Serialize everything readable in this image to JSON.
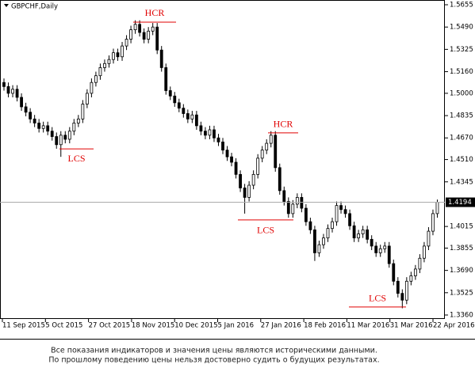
{
  "chart_data": {
    "type": "candlestick",
    "title": "GBPCHF,Daily",
    "ylim": [
      1.336,
      1.5655
    ],
    "yticks": [
      1.5655,
      {
        "value": 1.549,
        "label": "1.5490"
      },
      1.5325,
      {
        "value": 1.516,
        "label": "1.5160"
      },
      {
        "value": 1.5,
        "label": "1.5000"
      },
      1.4835,
      {
        "value": 1.467,
        "label": "1.4670"
      },
      {
        "value": 1.451,
        "label": "1.4510"
      },
      1.4345,
      1.4015,
      1.3855,
      {
        "value": 1.369,
        "label": "1.3690"
      },
      1.3525,
      {
        "value": 1.336,
        "label": "1.3360"
      }
    ],
    "xticks": [
      "11 Sep 2015",
      "5 Oct 2015",
      "27 Oct 2015",
      "18 Nov 2015",
      "10 Dec 2015",
      "5 Jan 2016",
      "27 Jan 2016",
      "18 Feb 2016",
      "11 Mar 2016",
      "31 Mar 2016",
      "22 Apr 2016"
    ],
    "current_price": 1.4194,
    "ohlc": [
      [
        1.508,
        1.511,
        1.502,
        1.505
      ],
      [
        1.505,
        1.508,
        1.497,
        1.5
      ],
      [
        1.5,
        1.506,
        1.497,
        1.503
      ],
      [
        1.503,
        1.506,
        1.494,
        1.497
      ],
      [
        1.497,
        1.5,
        1.487,
        1.49
      ],
      [
        1.49,
        1.493,
        1.483,
        1.486
      ],
      [
        1.486,
        1.489,
        1.478,
        1.481
      ],
      [
        1.481,
        1.484,
        1.475,
        1.478
      ],
      [
        1.478,
        1.481,
        1.471,
        1.474
      ],
      [
        1.474,
        1.479,
        1.471,
        1.476
      ],
      [
        1.476,
        1.479,
        1.469,
        1.472
      ],
      [
        1.472,
        1.475,
        1.465,
        1.468
      ],
      [
        1.468,
        1.471,
        1.459,
        1.462
      ],
      [
        1.462,
        1.472,
        1.453,
        1.469
      ],
      [
        1.469,
        1.472,
        1.463,
        1.466
      ],
      [
        1.466,
        1.475,
        1.463,
        1.472
      ],
      [
        1.472,
        1.481,
        1.469,
        1.478
      ],
      [
        1.478,
        1.484,
        1.475,
        1.481
      ],
      [
        1.481,
        1.495,
        1.478,
        1.492
      ],
      [
        1.492,
        1.503,
        1.489,
        1.5
      ],
      [
        1.5,
        1.511,
        1.497,
        1.508
      ],
      [
        1.508,
        1.516,
        1.505,
        1.513
      ],
      [
        1.513,
        1.522,
        1.51,
        1.519
      ],
      [
        1.519,
        1.525,
        1.516,
        1.522
      ],
      [
        1.522,
        1.528,
        1.519,
        1.525
      ],
      [
        1.525,
        1.533,
        1.522,
        1.53
      ],
      [
        1.53,
        1.533,
        1.524,
        1.527
      ],
      [
        1.527,
        1.538,
        1.524,
        1.535
      ],
      [
        1.535,
        1.543,
        1.532,
        1.54
      ],
      [
        1.54,
        1.55,
        1.537,
        1.547
      ],
      [
        1.547,
        1.554,
        1.544,
        1.551
      ],
      [
        1.551,
        1.554,
        1.542,
        1.545
      ],
      [
        1.545,
        1.548,
        1.537,
        1.54
      ],
      [
        1.54,
        1.549,
        1.537,
        1.546
      ],
      [
        1.546,
        1.552,
        1.543,
        1.549
      ],
      [
        1.549,
        1.552,
        1.529,
        1.532
      ],
      [
        1.532,
        1.535,
        1.516,
        1.519
      ],
      [
        1.519,
        1.522,
        1.499,
        1.502
      ],
      [
        1.502,
        1.505,
        1.495,
        1.498
      ],
      [
        1.498,
        1.501,
        1.49,
        1.493
      ],
      [
        1.493,
        1.496,
        1.486,
        1.489
      ],
      [
        1.489,
        1.492,
        1.482,
        1.485
      ],
      [
        1.485,
        1.488,
        1.478,
        1.481
      ],
      [
        1.481,
        1.487,
        1.478,
        1.484
      ],
      [
        1.484,
        1.487,
        1.473,
        1.476
      ],
      [
        1.476,
        1.479,
        1.469,
        1.472
      ],
      [
        1.472,
        1.475,
        1.466,
        1.469
      ],
      [
        1.469,
        1.476,
        1.466,
        1.473
      ],
      [
        1.473,
        1.476,
        1.464,
        1.467
      ],
      [
        1.467,
        1.47,
        1.461,
        1.464
      ],
      [
        1.464,
        1.467,
        1.455,
        1.458
      ],
      [
        1.458,
        1.461,
        1.45,
        1.453
      ],
      [
        1.453,
        1.456,
        1.446,
        1.449
      ],
      [
        1.449,
        1.452,
        1.437,
        1.44
      ],
      [
        1.44,
        1.443,
        1.427,
        1.43
      ],
      [
        1.43,
        1.433,
        1.411,
        1.423
      ],
      [
        1.423,
        1.435,
        1.42,
        1.432
      ],
      [
        1.432,
        1.443,
        1.429,
        1.44
      ],
      [
        1.44,
        1.455,
        1.437,
        1.452
      ],
      [
        1.452,
        1.461,
        1.449,
        1.458
      ],
      [
        1.458,
        1.466,
        1.455,
        1.463
      ],
      [
        1.463,
        1.472,
        1.46,
        1.469
      ],
      [
        1.469,
        1.472,
        1.442,
        1.445
      ],
      [
        1.445,
        1.448,
        1.425,
        1.428
      ],
      [
        1.428,
        1.431,
        1.417,
        1.42
      ],
      [
        1.42,
        1.423,
        1.408,
        1.411
      ],
      [
        1.411,
        1.421,
        1.408,
        1.418
      ],
      [
        1.418,
        1.426,
        1.415,
        1.423
      ],
      [
        1.423,
        1.426,
        1.412,
        1.415
      ],
      [
        1.415,
        1.418,
        1.402,
        1.405
      ],
      [
        1.405,
        1.408,
        1.396,
        1.399
      ],
      [
        1.399,
        1.402,
        1.376,
        1.382
      ],
      [
        1.382,
        1.391,
        1.379,
        1.388
      ],
      [
        1.388,
        1.396,
        1.385,
        1.393
      ],
      [
        1.393,
        1.403,
        1.39,
        1.4
      ],
      [
        1.4,
        1.408,
        1.397,
        1.405
      ],
      [
        1.405,
        1.42,
        1.402,
        1.417
      ],
      [
        1.417,
        1.42,
        1.411,
        1.414
      ],
      [
        1.414,
        1.417,
        1.408,
        1.411
      ],
      [
        1.411,
        1.414,
        1.399,
        1.402
      ],
      [
        1.402,
        1.405,
        1.39,
        1.393
      ],
      [
        1.393,
        1.399,
        1.39,
        1.396
      ],
      [
        1.396,
        1.402,
        1.393,
        1.399
      ],
      [
        1.399,
        1.402,
        1.389,
        1.392
      ],
      [
        1.392,
        1.395,
        1.384,
        1.387
      ],
      [
        1.387,
        1.39,
        1.379,
        1.382
      ],
      [
        1.382,
        1.388,
        1.379,
        1.385
      ],
      [
        1.385,
        1.39,
        1.382,
        1.387
      ],
      [
        1.387,
        1.39,
        1.371,
        1.374
      ],
      [
        1.374,
        1.377,
        1.358,
        1.361
      ],
      [
        1.361,
        1.364,
        1.349,
        1.352
      ],
      [
        1.352,
        1.355,
        1.341,
        1.347
      ],
      [
        1.347,
        1.364,
        1.344,
        1.361
      ],
      [
        1.361,
        1.368,
        1.358,
        1.365
      ],
      [
        1.365,
        1.373,
        1.362,
        1.37
      ],
      [
        1.37,
        1.381,
        1.367,
        1.378
      ],
      [
        1.378,
        1.39,
        1.375,
        1.387
      ],
      [
        1.387,
        1.401,
        1.384,
        1.398
      ],
      [
        1.398,
        1.414,
        1.395,
        1.411
      ],
      [
        1.411,
        1.4214,
        1.408,
        1.4194
      ]
    ],
    "annotations": [
      {
        "text": "HCR",
        "level": 1.5526
      },
      {
        "text": "LCS",
        "level": 1.4589
      },
      {
        "text": "HCR",
        "level": 1.4707
      },
      {
        "text": "LCS",
        "level": 1.4063
      },
      {
        "text": "LCS",
        "level": 1.3419
      }
    ],
    "disclaimer": [
      "Все показания индикаторов и значения цены являются историческими данными.",
      "По прошлому поведению цены нельзя достоверно судить о будущих результатах."
    ]
  }
}
